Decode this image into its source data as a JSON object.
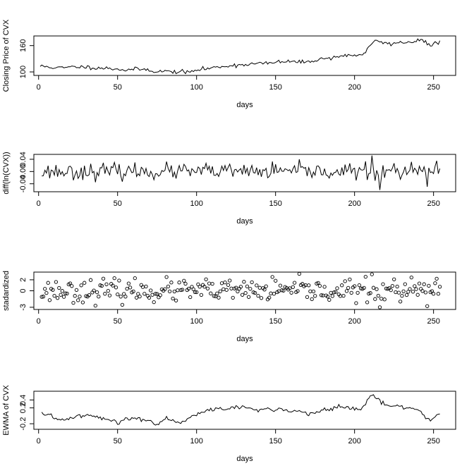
{
  "chart_data": [
    {
      "type": "line",
      "xlabel": "days",
      "ylabel": "Closing Price of CVX",
      "xlim": [
        -3,
        264
      ],
      "ylim": [
        92,
        182
      ],
      "xticks": [
        0,
        50,
        100,
        150,
        200,
        250
      ],
      "yticks": [
        100,
        160
      ],
      "x_start": 1,
      "anchors": [
        [
          1,
          113
        ],
        [
          5,
          112
        ],
        [
          10,
          110
        ],
        [
          15,
          109
        ],
        [
          20,
          111
        ],
        [
          25,
          112
        ],
        [
          30,
          111
        ],
        [
          35,
          110
        ],
        [
          40,
          109
        ],
        [
          45,
          108
        ],
        [
          50,
          107
        ],
        [
          55,
          104
        ],
        [
          60,
          106
        ],
        [
          65,
          106
        ],
        [
          70,
          105
        ],
        [
          75,
          100
        ],
        [
          80,
          102
        ],
        [
          85,
          100
        ],
        [
          90,
          101
        ],
        [
          95,
          99
        ],
        [
          100,
          104
        ],
        [
          105,
          107
        ],
        [
          110,
          109
        ],
        [
          115,
          112
        ],
        [
          120,
          114
        ],
        [
          125,
          115
        ],
        [
          130,
          117
        ],
        [
          135,
          118
        ],
        [
          140,
          120
        ],
        [
          145,
          119
        ],
        [
          150,
          122
        ],
        [
          155,
          123
        ],
        [
          160,
          124
        ],
        [
          165,
          122
        ],
        [
          170,
          123
        ],
        [
          175,
          127
        ],
        [
          180,
          130
        ],
        [
          185,
          132
        ],
        [
          190,
          136
        ],
        [
          195,
          137
        ],
        [
          200,
          138
        ],
        [
          205,
          140
        ],
        [
          208,
          150
        ],
        [
          212,
          168
        ],
        [
          215,
          172
        ],
        [
          218,
          166
        ],
        [
          222,
          164
        ],
        [
          226,
          166
        ],
        [
          230,
          167
        ],
        [
          234,
          168
        ],
        [
          238,
          170
        ],
        [
          242,
          174
        ],
        [
          245,
          166
        ],
        [
          248,
          160
        ],
        [
          251,
          164
        ],
        [
          254,
          170
        ]
      ],
      "noise": 2.2,
      "seed": 11
    },
    {
      "type": "line",
      "xlabel": "days",
      "ylabel": "diff(ln(CVX))",
      "xlim": [
        -3,
        264
      ],
      "ylim": [
        -0.066,
        0.056
      ],
      "xticks": [
        0,
        50,
        100,
        150,
        200,
        250
      ],
      "yticks": [
        -0.04,
        0,
        0.04
      ],
      "ytick_labels": [
        "-0.04",
        "0.00",
        "0.04"
      ],
      "x_start": 2,
      "anchors": [
        [
          2,
          0.0
        ],
        [
          254,
          0.0
        ]
      ],
      "noise": 0.013,
      "seed": 23,
      "spikes": [
        [
          211,
          0.052
        ],
        [
          213,
          -0.03
        ],
        [
          216,
          -0.06
        ],
        [
          218,
          0.02
        ],
        [
          246,
          -0.05
        ],
        [
          252,
          0.035
        ]
      ]
    },
    {
      "type": "scatter",
      "xlabel": "days",
      "ylabel": "stadardized",
      "xlim": [
        -3,
        264
      ],
      "ylim": [
        -3.4,
        3.4
      ],
      "xticks": [
        0,
        50,
        100,
        150,
        200,
        250
      ],
      "yticks": [
        -3,
        0,
        2
      ],
      "x_start": 2,
      "anchors": [
        [
          2,
          0.0
        ],
        [
          254,
          0.0
        ]
      ],
      "noise": 1.0,
      "seed": 23,
      "spikes": [
        [
          211,
          3.0
        ],
        [
          213,
          -1.5
        ],
        [
          216,
          -3.0
        ],
        [
          218,
          1.2
        ],
        [
          246,
          -2.8
        ],
        [
          252,
          2.2
        ]
      ]
    },
    {
      "type": "line",
      "xlabel": "days",
      "ylabel": "EWMA of CVX",
      "xlim": [
        -3,
        264
      ],
      "ylim": [
        -0.34,
        0.62
      ],
      "xticks": [
        0,
        50,
        100,
        150,
        200,
        250
      ],
      "yticks": [
        -0.2,
        0.2,
        0.4
      ],
      "ytick_labels": [
        "-0.2",
        "0.2",
        "0.4"
      ],
      "x_start": 2,
      "anchors": [
        [
          2,
          0.05
        ],
        [
          5,
          0.0
        ],
        [
          8,
          0.03
        ],
        [
          10,
          -0.08
        ],
        [
          15,
          -0.1
        ],
        [
          20,
          -0.05
        ],
        [
          25,
          0.0
        ],
        [
          30,
          0.02
        ],
        [
          35,
          -0.02
        ],
        [
          40,
          -0.06
        ],
        [
          45,
          -0.12
        ],
        [
          48,
          -0.1
        ],
        [
          50,
          -0.22
        ],
        [
          53,
          -0.1
        ],
        [
          57,
          -0.08
        ],
        [
          60,
          -0.06
        ],
        [
          65,
          -0.08
        ],
        [
          70,
          -0.12
        ],
        [
          75,
          -0.22
        ],
        [
          78,
          -0.12
        ],
        [
          82,
          -0.06
        ],
        [
          86,
          -0.12
        ],
        [
          90,
          -0.16
        ],
        [
          95,
          -0.05
        ],
        [
          100,
          0.06
        ],
        [
          105,
          0.12
        ],
        [
          110,
          0.15
        ],
        [
          115,
          0.2
        ],
        [
          120,
          0.18
        ],
        [
          125,
          0.22
        ],
        [
          130,
          0.2
        ],
        [
          135,
          0.18
        ],
        [
          140,
          0.12
        ],
        [
          145,
          0.2
        ],
        [
          150,
          0.15
        ],
        [
          155,
          0.16
        ],
        [
          160,
          0.1
        ],
        [
          165,
          0.14
        ],
        [
          170,
          0.03
        ],
        [
          175,
          0.08
        ],
        [
          180,
          0.15
        ],
        [
          185,
          0.18
        ],
        [
          190,
          0.22
        ],
        [
          195,
          0.2
        ],
        [
          200,
          0.16
        ],
        [
          204,
          0.16
        ],
        [
          207,
          0.3
        ],
        [
          210,
          0.5
        ],
        [
          212,
          0.52
        ],
        [
          214,
          0.45
        ],
        [
          217,
          0.35
        ],
        [
          220,
          0.25
        ],
        [
          225,
          0.25
        ],
        [
          230,
          0.22
        ],
        [
          235,
          0.2
        ],
        [
          240,
          0.18
        ],
        [
          244,
          0.0
        ],
        [
          247,
          -0.1
        ],
        [
          250,
          -0.06
        ],
        [
          254,
          0.06
        ]
      ],
      "noise": 0.025,
      "seed": 41
    }
  ]
}
